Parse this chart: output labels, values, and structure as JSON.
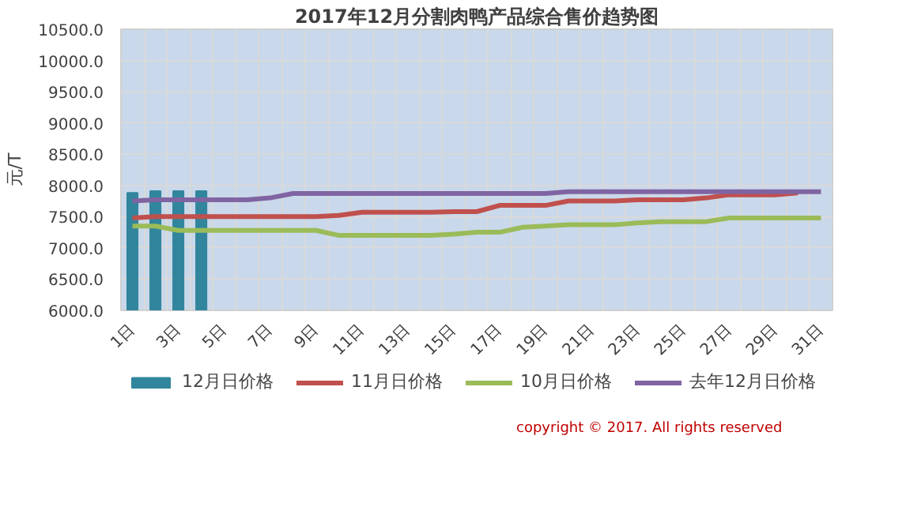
{
  "chart_data": {
    "type": "line",
    "title": "2017年12月分割肉鸭产品综合售价趋势图",
    "ylabel": "元/T",
    "categories": [
      "1日",
      null,
      "3日",
      null,
      "5日",
      null,
      "7日",
      null,
      "9日",
      null,
      "11日",
      null,
      "13日",
      null,
      "15日",
      null,
      "17日",
      null,
      "19日",
      null,
      "21日",
      null,
      "23日",
      null,
      "25日",
      null,
      "27日",
      null,
      "29日",
      null,
      "31日"
    ],
    "series": [
      {
        "name": "12月日价格",
        "type": "bar",
        "color": "#31859c",
        "values": [
          7880,
          7910,
          7910,
          7910,
          null,
          null,
          null,
          null,
          null,
          null,
          null,
          null,
          null,
          null,
          null,
          null,
          null,
          null,
          null,
          null,
          null,
          null,
          null,
          null,
          null,
          null,
          null,
          null,
          null,
          null,
          null
        ]
      },
      {
        "name": "11月日价格",
        "color": "#c0504d",
        "values": [
          7480,
          7500,
          7500,
          7500,
          7500,
          7500,
          7500,
          7500,
          7500,
          7520,
          7570,
          7570,
          7570,
          7570,
          7580,
          7580,
          7680,
          7680,
          7680,
          7750,
          7750,
          7750,
          7770,
          7770,
          7770,
          7800,
          7850,
          7850,
          7850,
          7880,
          null
        ]
      },
      {
        "name": "10月日价格",
        "color": "#9bbb59",
        "values": [
          7350,
          7350,
          7280,
          7280,
          7280,
          7280,
          7280,
          7280,
          7280,
          7200,
          7200,
          7200,
          7200,
          7200,
          7220,
          7250,
          7250,
          7330,
          7350,
          7370,
          7370,
          7370,
          7400,
          7420,
          7420,
          7420,
          7480,
          7480,
          7480,
          7480,
          7480
        ]
      },
      {
        "name": "去年12月日价格",
        "color": "#8064a2",
        "values": [
          7750,
          7770,
          7770,
          7770,
          7770,
          7770,
          7800,
          7870,
          7870,
          7870,
          7870,
          7870,
          7870,
          7870,
          7870,
          7870,
          7870,
          7870,
          7870,
          7900,
          7900,
          7900,
          7900,
          7900,
          7900,
          7900,
          7900,
          7900,
          7900,
          7900,
          7900
        ]
      }
    ],
    "ylim": [
      6000,
      10500
    ],
    "yticks": [
      {
        "value": 6000,
        "label": "6000.0"
      },
      {
        "value": 6500,
        "label": "6500.0"
      },
      {
        "value": 7000,
        "label": "7000.0"
      },
      {
        "value": 7500,
        "label": "7500.0"
      },
      {
        "value": 8000,
        "label": "8000.0"
      },
      {
        "value": 8500,
        "label": "8500.0"
      },
      {
        "value": 9000,
        "label": "9000.0"
      },
      {
        "value": 9500,
        "label": "9500.0"
      },
      {
        "value": 10000,
        "label": "10000.0"
      },
      {
        "value": 10500,
        "label": "10500.0"
      }
    ],
    "grid": true,
    "legend": "bottom",
    "annotations": [
      "copyright © 2017. All rights reserved"
    ]
  }
}
